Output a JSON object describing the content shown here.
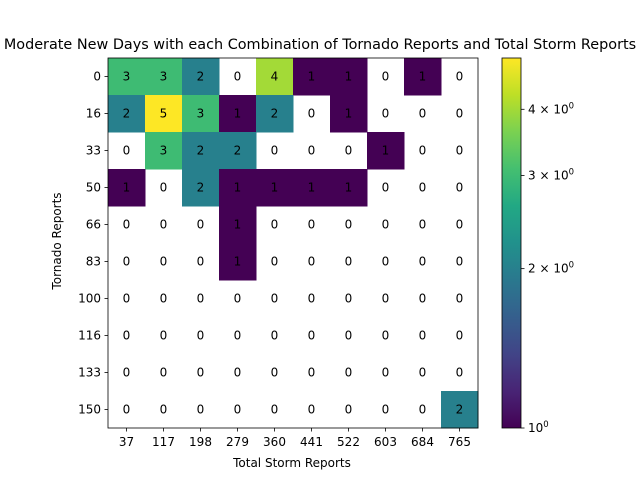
{
  "chart_data": {
    "type": "heatmap",
    "title": "Moderate New Days with each Combination of Tornado Reports and Total Storm Reports",
    "xlabel": "Total Storm Reports",
    "ylabel": "Tornado Reports",
    "x_categories": [
      "37",
      "117",
      "198",
      "279",
      "360",
      "441",
      "522",
      "603",
      "684",
      "765"
    ],
    "y_categories": [
      "0",
      "16",
      "33",
      "50",
      "66",
      "83",
      "100",
      "116",
      "133",
      "150"
    ],
    "values": [
      [
        3,
        3,
        2,
        0,
        4,
        1,
        1,
        0,
        1,
        0
      ],
      [
        2,
        5,
        3,
        1,
        2,
        0,
        1,
        0,
        0,
        0
      ],
      [
        0,
        3,
        2,
        2,
        0,
        0,
        0,
        1,
        0,
        0
      ],
      [
        1,
        0,
        2,
        1,
        1,
        1,
        1,
        0,
        0,
        0
      ],
      [
        0,
        0,
        0,
        1,
        0,
        0,
        0,
        0,
        0,
        0
      ],
      [
        0,
        0,
        0,
        1,
        0,
        0,
        0,
        0,
        0,
        0
      ],
      [
        0,
        0,
        0,
        0,
        0,
        0,
        0,
        0,
        0,
        0
      ],
      [
        0,
        0,
        0,
        0,
        0,
        0,
        0,
        0,
        0,
        0
      ],
      [
        0,
        0,
        0,
        0,
        0,
        0,
        0,
        0,
        0,
        0
      ],
      [
        0,
        0,
        0,
        0,
        0,
        0,
        0,
        0,
        0,
        2
      ]
    ],
    "colormap": "viridis",
    "color_scale": "log",
    "zero_cells": "white",
    "colorbar": {
      "range": [
        1,
        5
      ],
      "ticks": [
        {
          "value": 1,
          "base": "10",
          "exp": "0",
          "mantissa": ""
        },
        {
          "value": 2,
          "base": "10",
          "exp": "0",
          "mantissa": "2 × "
        },
        {
          "value": 3,
          "base": "10",
          "exp": "0",
          "mantissa": "3 × "
        },
        {
          "value": 4,
          "base": "10",
          "exp": "0",
          "mantissa": "4 × "
        }
      ]
    },
    "grid": false,
    "annotations": "cell counts"
  }
}
